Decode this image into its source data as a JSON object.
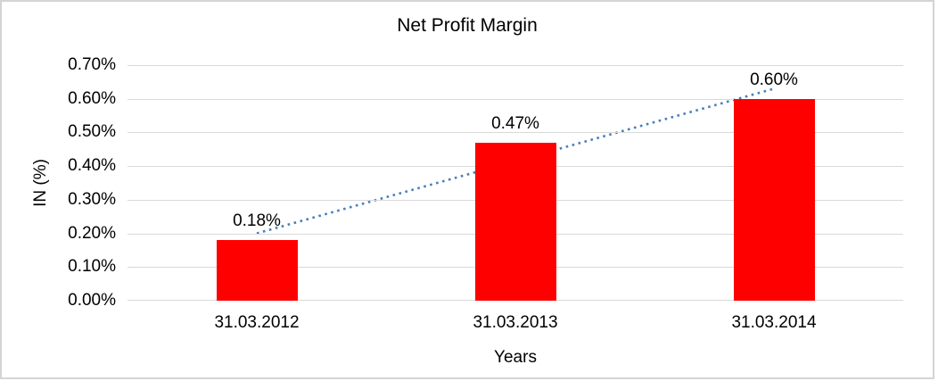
{
  "chart_data": {
    "type": "bar",
    "title": "Net Profit Margin",
    "xlabel": "Years",
    "ylabel": "IN (%)",
    "categories": [
      "31.03.2012",
      "31.03.2013",
      "31.03.2014"
    ],
    "values": [
      0.18,
      0.47,
      0.6
    ],
    "data_labels": [
      "0.18%",
      "0.47%",
      "0.60%"
    ],
    "y_ticks_top_to_bottom": [
      "0.70%",
      "0.60%",
      "0.50%",
      "0.40%",
      "0.30%",
      "0.20%",
      "0.10%",
      "0.00%"
    ],
    "ylim": [
      0,
      0.7
    ],
    "grid": "horizontal",
    "legend": "none",
    "bar_color": "#ff0000",
    "trendline": {
      "style": "dotted",
      "color": "#4a7ebb",
      "start_value": 0.2,
      "end_value": 0.63
    }
  },
  "colors": {
    "gridline": "#d9d9d9",
    "frame_border": "#d4d4d4",
    "text": "#000000",
    "background": "#ffffff"
  }
}
